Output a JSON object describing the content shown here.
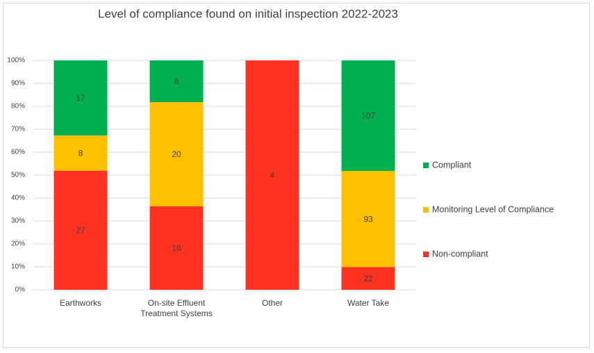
{
  "chart_data": {
    "type": "bar",
    "stacking": "percent",
    "title": "Level of compliance found on initial inspection 2022-2023",
    "categories": [
      "Earthworks",
      "On-site Effluent Treatment Systems",
      "Other",
      "Water Take"
    ],
    "series": [
      {
        "name": "Non-compliant",
        "color": "#ff3121",
        "values": [
          27,
          16,
          4,
          22
        ]
      },
      {
        "name": "Monitoring Level of Compliance",
        "color": "#ffc000",
        "values": [
          8,
          20,
          null,
          93
        ]
      },
      {
        "name": "Compliant",
        "color": "#00b050",
        "values": [
          17,
          8,
          null,
          107
        ]
      }
    ],
    "ylim": [
      0,
      100
    ],
    "yticks": [
      {
        "value": 0,
        "label": "0%"
      },
      {
        "value": 10,
        "label": "10%"
      },
      {
        "value": 20,
        "label": "20%"
      },
      {
        "value": 30,
        "label": "30%"
      },
      {
        "value": 40,
        "label": "40%"
      },
      {
        "value": 50,
        "label": "50%"
      },
      {
        "value": 60,
        "label": "60%"
      },
      {
        "value": 70,
        "label": "70%"
      },
      {
        "value": 80,
        "label": "80%"
      },
      {
        "value": 90,
        "label": "90%"
      },
      {
        "value": 100,
        "label": "100%"
      }
    ],
    "grid": true,
    "legend": "right"
  }
}
